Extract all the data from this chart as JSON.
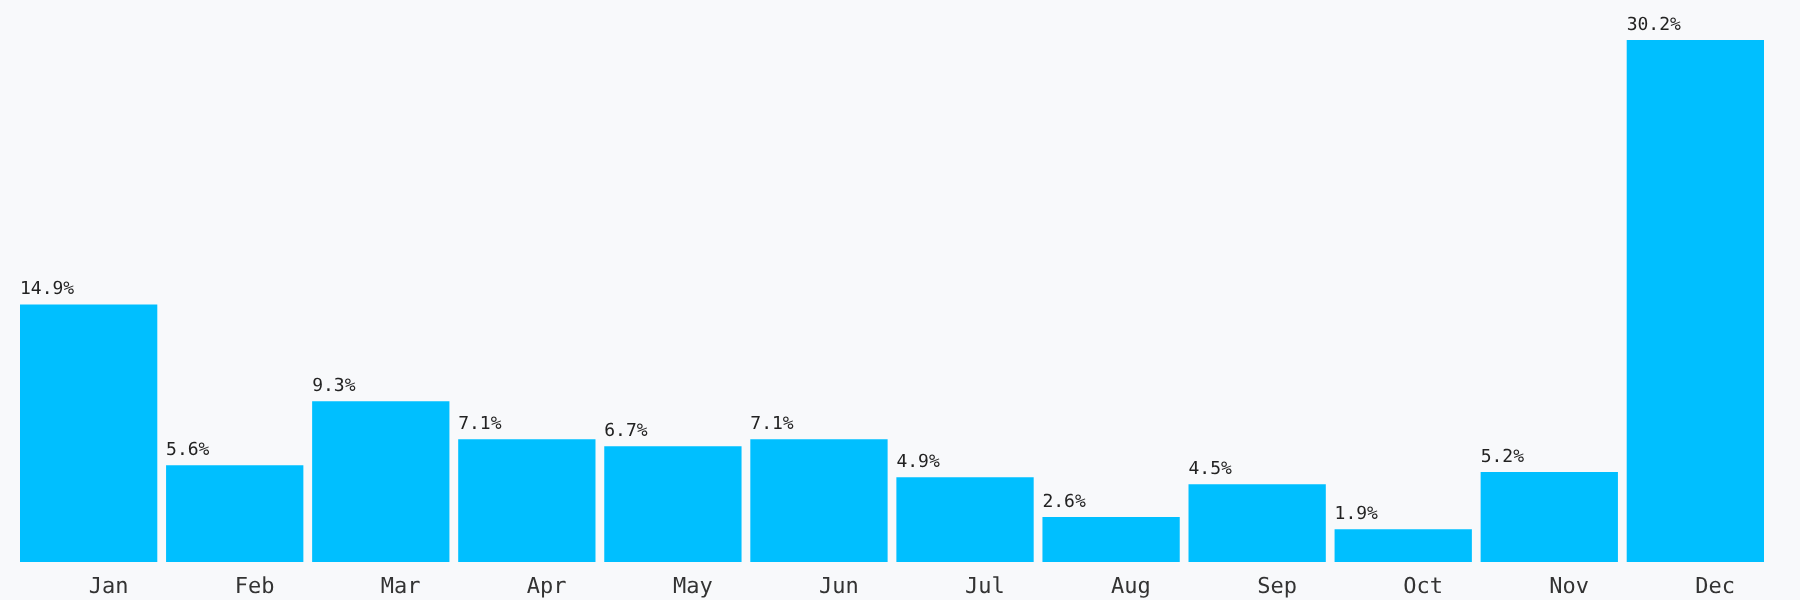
{
  "chart_data": {
    "type": "bar",
    "categories": [
      "Jan",
      "Feb",
      "Mar",
      "Apr",
      "May",
      "Jun",
      "Jul",
      "Aug",
      "Sep",
      "Oct",
      "Nov",
      "Dec"
    ],
    "values": [
      14.9,
      5.6,
      9.3,
      7.1,
      6.7,
      7.1,
      4.9,
      2.6,
      4.5,
      1.9,
      5.2,
      30.2
    ],
    "value_labels": [
      "14.9%",
      "5.6%",
      "9.3%",
      "7.1%",
      "6.7%",
      "7.1%",
      "4.9%",
      "2.6%",
      "4.5%",
      "1.9%",
      "5.2%",
      "30.2%"
    ],
    "color": "#00bfff"
  }
}
